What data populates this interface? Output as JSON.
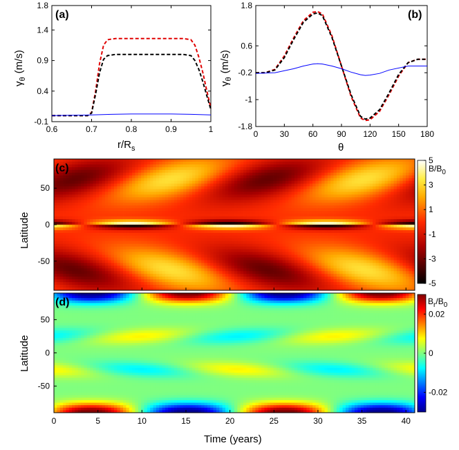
{
  "chart_data": [
    {
      "panel": "(a)",
      "type": "line",
      "xlabel": "r/R",
      "xlabel_sub": "s",
      "ylabel": "γ",
      "ylabel_sub": "θ",
      "ylabel_unit": "(m/s)",
      "xlim": [
        0.6,
        1.0
      ],
      "ylim": [
        -0.1,
        1.8
      ],
      "xticks": [
        "0.6",
        "0.7",
        "0.8",
        "0.9",
        "1"
      ],
      "xtick_values": [
        0.6,
        0.7,
        0.8,
        0.9,
        1.0
      ],
      "yticks": [
        "-0.1",
        "0.4",
        "0.9",
        "1.4",
        "1.8"
      ],
      "ytick_values": [
        -0.1,
        0.4,
        0.9,
        1.4,
        1.8
      ],
      "series": [
        {
          "name": "red dashed",
          "color": "#e00000",
          "style": "dashed",
          "x": [
            0.6,
            0.65,
            0.69,
            0.7,
            0.71,
            0.72,
            0.73,
            0.74,
            0.76,
            0.8,
            0.85,
            0.9,
            0.93,
            0.95,
            0.96,
            0.97,
            0.98,
            0.99,
            1.0
          ],
          "y": [
            0.0,
            0.0,
            0.0,
            0.05,
            0.4,
            0.85,
            1.15,
            1.24,
            1.26,
            1.26,
            1.26,
            1.26,
            1.26,
            1.24,
            1.15,
            0.95,
            0.7,
            0.4,
            0.12
          ]
        },
        {
          "name": "black dashed",
          "color": "#000000",
          "style": "dashed",
          "x": [
            0.6,
            0.65,
            0.69,
            0.7,
            0.71,
            0.72,
            0.73,
            0.74,
            0.76,
            0.8,
            0.85,
            0.9,
            0.93,
            0.95,
            0.96,
            0.97,
            0.98,
            0.99,
            1.0
          ],
          "y": [
            0.0,
            0.0,
            0.0,
            0.04,
            0.35,
            0.7,
            0.92,
            0.98,
            1.0,
            1.0,
            1.0,
            1.0,
            1.0,
            0.98,
            0.9,
            0.75,
            0.55,
            0.32,
            0.1
          ]
        },
        {
          "name": "blue solid",
          "color": "#0000ff",
          "style": "solid",
          "x": [
            0.6,
            0.7,
            0.75,
            0.8,
            0.85,
            0.9,
            0.95,
            1.0
          ],
          "y": [
            0.0,
            0.01,
            0.02,
            0.025,
            0.025,
            0.025,
            0.02,
            0.01
          ]
        }
      ]
    },
    {
      "panel": "(b)",
      "type": "line",
      "xlabel": "θ",
      "ylabel": "γ",
      "ylabel_sub": "θ",
      "ylabel_unit": "(m/s)",
      "xlim": [
        0,
        180
      ],
      "ylim": [
        -1.8,
        1.8
      ],
      "xticks": [
        "0",
        "30",
        "60",
        "90",
        "120",
        "150",
        "180"
      ],
      "xtick_values": [
        0,
        30,
        60,
        90,
        120,
        150,
        180
      ],
      "yticks": [
        "-1.8",
        "-1",
        "-0.2",
        "0.6",
        "1.8"
      ],
      "ytick_values": [
        -1.8,
        -1.0,
        -0.2,
        0.6,
        1.8
      ],
      "series": [
        {
          "name": "red dashed",
          "color": "#e00000",
          "style": "dashed",
          "x": [
            0,
            10,
            20,
            30,
            40,
            50,
            60,
            65,
            70,
            80,
            90,
            100,
            110,
            115,
            120,
            130,
            140,
            150,
            160,
            170,
            180
          ],
          "y": [
            -0.2,
            -0.2,
            -0.1,
            0.3,
            0.85,
            1.35,
            1.6,
            1.62,
            1.55,
            0.9,
            0.0,
            -0.9,
            -1.55,
            -1.62,
            -1.6,
            -1.35,
            -0.85,
            -0.3,
            0.1,
            0.2,
            0.2
          ]
        },
        {
          "name": "black dashed",
          "color": "#000000",
          "style": "dashed",
          "x": [
            0,
            10,
            20,
            30,
            40,
            50,
            60,
            65,
            70,
            80,
            90,
            100,
            110,
            115,
            120,
            130,
            140,
            150,
            160,
            170,
            180
          ],
          "y": [
            -0.2,
            -0.2,
            -0.12,
            0.25,
            0.8,
            1.3,
            1.55,
            1.58,
            1.5,
            0.85,
            0.0,
            -0.85,
            -1.5,
            -1.58,
            -1.55,
            -1.3,
            -0.8,
            -0.25,
            0.1,
            0.2,
            0.2
          ]
        },
        {
          "name": "blue solid",
          "color": "#0000ff",
          "style": "solid",
          "x": [
            0,
            20,
            40,
            50,
            60,
            65,
            70,
            80,
            90,
            100,
            110,
            115,
            120,
            130,
            140,
            160,
            180
          ],
          "y": [
            -0.22,
            -0.2,
            -0.08,
            0.0,
            0.06,
            0.07,
            0.06,
            0.0,
            -0.08,
            -0.18,
            -0.26,
            -0.28,
            -0.27,
            -0.22,
            -0.12,
            0.0,
            0.0
          ]
        }
      ]
    },
    {
      "panel": "(c)",
      "type": "heatmap",
      "ylabel": "Latitude",
      "xlim": [
        0,
        41
      ],
      "ylim": [
        -90,
        90
      ],
      "yticks": [
        "-50",
        "0",
        "50"
      ],
      "ytick_values": [
        -50,
        0,
        50
      ],
      "colorbar_label": "B/B",
      "colorbar_label_sub": "0",
      "colorbar_ticks": [
        "5",
        "3",
        "1",
        "-1",
        "-3",
        "-5"
      ],
      "colorbar_tick_values": [
        5,
        3,
        1,
        -1,
        -3,
        -5
      ],
      "colorbar_range": [
        -5,
        5
      ],
      "period_years": 22,
      "colormap": "hot"
    },
    {
      "panel": "(d)",
      "type": "heatmap",
      "ylabel": "Latitude",
      "xlabel": "Time (years)",
      "xlim": [
        0,
        41
      ],
      "ylim": [
        -90,
        90
      ],
      "xticks": [
        "0",
        "5",
        "10",
        "15",
        "20",
        "25",
        "30",
        "35",
        "40"
      ],
      "xtick_values": [
        0,
        5,
        10,
        15,
        20,
        25,
        30,
        35,
        40
      ],
      "yticks": [
        "-50",
        "0",
        "50"
      ],
      "ytick_values": [
        -50,
        0,
        50
      ],
      "colorbar_label": "B",
      "colorbar_label_sub1": "r",
      "colorbar_label_mid": "/B",
      "colorbar_label_sub2": "0",
      "colorbar_ticks": [
        "0.02",
        "0",
        "-0.02"
      ],
      "colorbar_tick_values": [
        0.02,
        0,
        -0.02
      ],
      "colorbar_range": [
        -0.03,
        0.03
      ],
      "period_years": 22,
      "colormap": "jet"
    }
  ]
}
